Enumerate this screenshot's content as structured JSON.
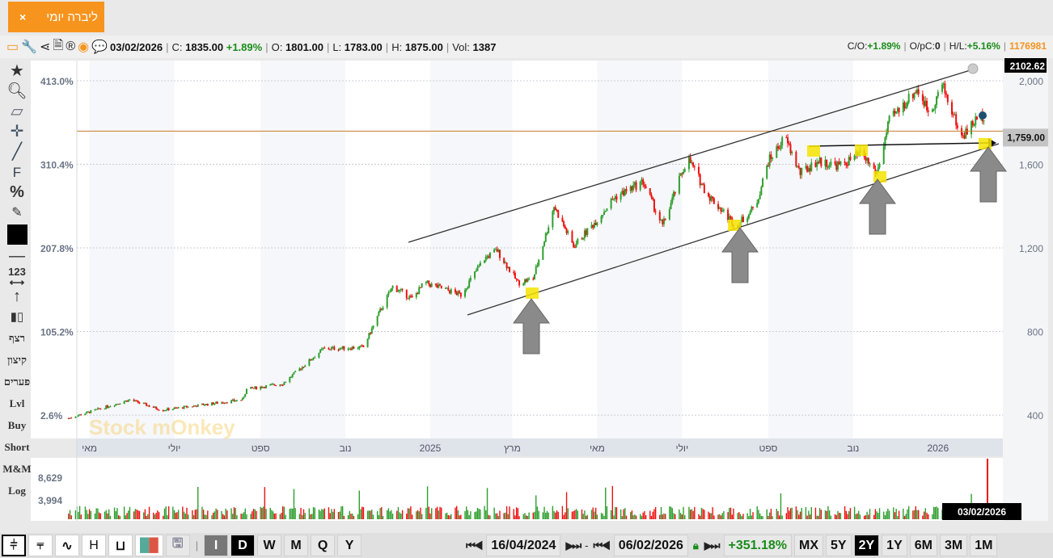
{
  "tab": {
    "title": "ליברה יומי",
    "close": "×"
  },
  "info": {
    "date": "03/02/2026",
    "c_label": "C:",
    "c": "1835.00",
    "chg": "+1.89%",
    "o_label": "O:",
    "o": "1801.00",
    "l_label": "L:",
    "l": "1783.00",
    "h_label": "H:",
    "h": "1875.00",
    "vol_label": "Vol:",
    "vol": "1387",
    "co_label": "C/O:",
    "co": "+1.89%",
    "opc_label": "O/pC:",
    "opc": "0",
    "hl_label": "H/L:",
    "hl": "+5.16%",
    "id": "1176981"
  },
  "left_tools": {
    "words": [
      "רצף",
      "קיצון",
      "פערים",
      "Lvl",
      "Buy",
      "Short",
      "M&M",
      "Log"
    ]
  },
  "bottom": {
    "types": [
      "I",
      "D",
      "W",
      "M",
      "Q",
      "Y"
    ],
    "active_type": "D",
    "start_date": "16/04/2024",
    "end_date": "06/02/2026",
    "change": "+351.18%",
    "ranges": [
      "MX",
      "5Y",
      "2Y",
      "1Y",
      "6M",
      "3M",
      "1M"
    ],
    "active_range": "2Y",
    "h_label": "H"
  },
  "colors": {
    "up": "#2e9e2e",
    "down": "#ee1111",
    "accent": "#f7941d",
    "hline": "#c77a2a"
  },
  "chart_data": {
    "type": "candlestick",
    "watermark": "Stock mOnkey",
    "y_right_ticks": [
      "2,000",
      "1,600",
      "1,200",
      "800",
      "400"
    ],
    "y_right_values": [
      2000,
      1600,
      1200,
      800,
      400
    ],
    "y_left_ticks": [
      "413.0%",
      "310.4%",
      "207.8%",
      "105.2%",
      "2.6%"
    ],
    "x_ticks": [
      {
        "label": "מאי",
        "date": "2024-05-01"
      },
      {
        "label": "יולי",
        "date": "2024-07-01"
      },
      {
        "label": "ספט",
        "date": "2024-09-01"
      },
      {
        "label": "נוב",
        "date": "2024-11-01"
      },
      {
        "label": "2025",
        "date": "2025-01-01"
      },
      {
        "label": "מרץ",
        "date": "2025-03-01"
      },
      {
        "label": "מאי",
        "date": "2025-05-01"
      },
      {
        "label": "יולי",
        "date": "2025-07-01"
      },
      {
        "label": "ספט",
        "date": "2025-09-01"
      },
      {
        "label": "נוב",
        "date": "2025-11-01"
      },
      {
        "label": "2026",
        "date": "2026-01-01"
      }
    ],
    "ylim": [
      320,
      2110
    ],
    "top_marker": "2102.62",
    "hline_label": "1,759.00",
    "hline_value": 1759,
    "cursor_date": "03/02/2026",
    "volume_ticks": [
      "8,629",
      "3,994"
    ],
    "volume_tick_values": [
      8629,
      3994
    ],
    "closes": [
      [
        "2024-04-16",
        385
      ],
      [
        "2024-05-30",
        474
      ],
      [
        "2024-06-22",
        424
      ],
      [
        "2024-08-19",
        474
      ],
      [
        "2024-08-22",
        524
      ],
      [
        "2024-09-17",
        551
      ],
      [
        "2024-10-16",
        717
      ],
      [
        "2024-11-14",
        725
      ],
      [
        "2024-11-26",
        899
      ],
      [
        "2024-12-05",
        1015
      ],
      [
        "2024-12-19",
        957
      ],
      [
        "2024-12-28",
        1034
      ],
      [
        "2025-01-23",
        976
      ],
      [
        "2025-02-09",
        1150
      ],
      [
        "2025-02-18",
        1189
      ],
      [
        "2025-03-05",
        1034
      ],
      [
        "2025-03-16",
        1053
      ],
      [
        "2025-03-31",
        1401
      ],
      [
        "2025-04-14",
        1208
      ],
      [
        "2025-05-02",
        1343
      ],
      [
        "2025-05-13",
        1440
      ],
      [
        "2025-06-03",
        1517
      ],
      [
        "2025-06-17",
        1304
      ],
      [
        "2025-07-05",
        1633
      ],
      [
        "2025-07-19",
        1459
      ],
      [
        "2025-08-09",
        1304
      ],
      [
        "2025-08-23",
        1401
      ],
      [
        "2025-09-01",
        1614
      ],
      [
        "2025-09-13",
        1730
      ],
      [
        "2025-09-24",
        1556
      ],
      [
        "2025-10-06",
        1614
      ],
      [
        "2025-10-23",
        1594
      ],
      [
        "2025-11-07",
        1652
      ],
      [
        "2025-11-18",
        1556
      ],
      [
        "2025-11-27",
        1807
      ],
      [
        "2025-12-17",
        1961
      ],
      [
        "2025-12-26",
        1845
      ],
      [
        "2026-01-04",
        1981
      ],
      [
        "2026-01-18",
        1730
      ],
      [
        "2026-01-30",
        1826
      ],
      [
        "2026-02-03",
        1835
      ]
    ]
  }
}
